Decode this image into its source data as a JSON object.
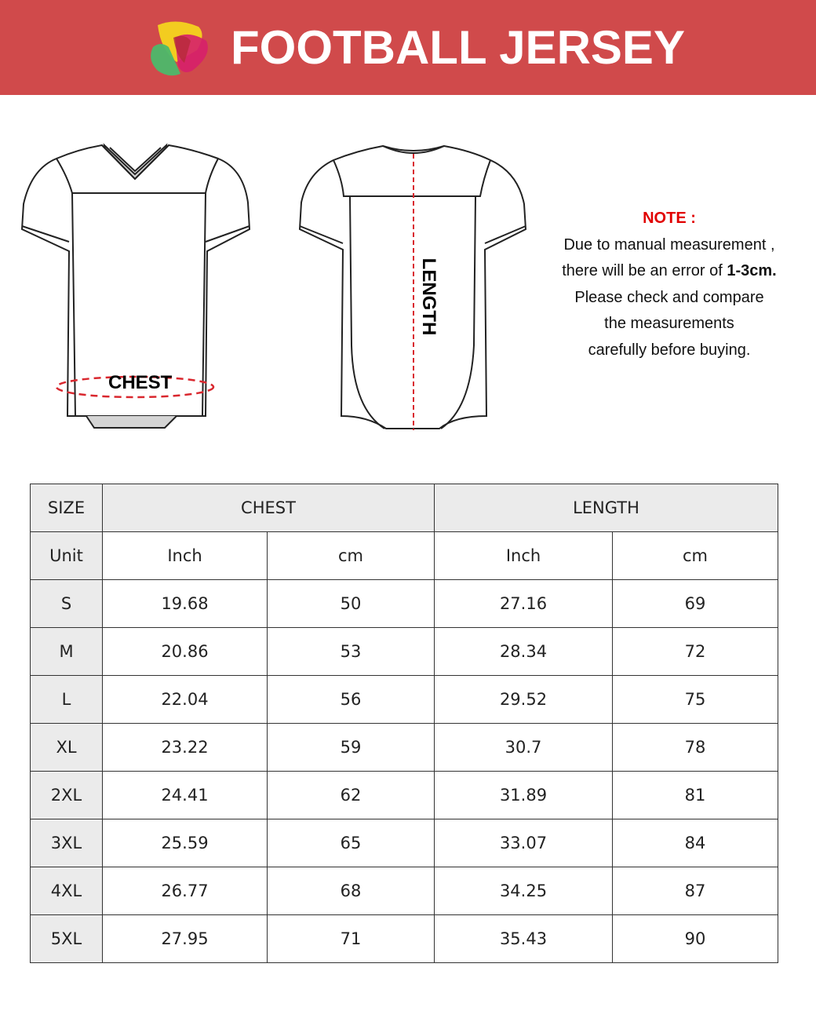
{
  "header": {
    "title": "FOOTBALL JERSEY",
    "logo": "four-color-petal-logo"
  },
  "diagram": {
    "chest_label": "CHEST",
    "length_label": "LENGTH",
    "measure_color": "#d9272e"
  },
  "note": {
    "title": "NOTE :",
    "line1": "Due to manual measurement ,",
    "line2_prefix": "there will be an error of ",
    "line2_bold": "1-3cm.",
    "line3": "Please check and compare",
    "line4": "the measurements",
    "line5": "carefully before buying."
  },
  "table": {
    "size_header": "SIZE",
    "chest_header": "CHEST",
    "length_header": "LENGTH",
    "unit_label": "Unit",
    "units": [
      "Inch",
      "cm",
      "Inch",
      "cm"
    ],
    "rows": [
      [
        "S",
        "19.68",
        "50",
        "27.16",
        "69"
      ],
      [
        "M",
        "20.86",
        "53",
        "28.34",
        "72"
      ],
      [
        "L",
        "22.04",
        "56",
        "29.52",
        "75"
      ],
      [
        "XL",
        "23.22",
        "59",
        "30.7",
        "78"
      ],
      [
        "2XL",
        "24.41",
        "62",
        "31.89",
        "81"
      ],
      [
        "3XL",
        "25.59",
        "65",
        "33.07",
        "84"
      ],
      [
        "4XL",
        "26.77",
        "68",
        "34.25",
        "87"
      ],
      [
        "5XL",
        "27.95",
        "71",
        "35.43",
        "90"
      ]
    ]
  }
}
